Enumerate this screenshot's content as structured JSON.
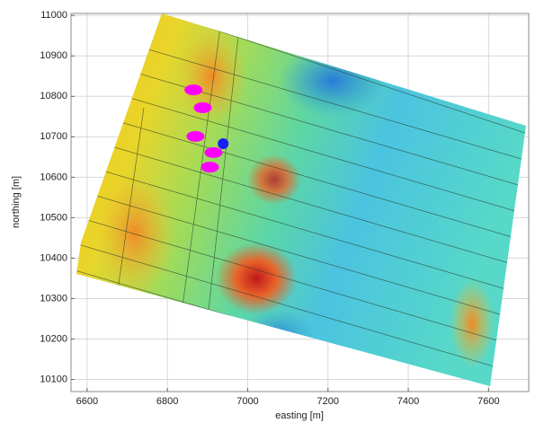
{
  "chart_data": {
    "type": "scatter",
    "xlabel": "easting [m]",
    "ylabel": "northing [m]",
    "xlim": [
      6560,
      7700
    ],
    "ylim": [
      10070,
      11005
    ],
    "xticks": [
      6600,
      6800,
      7000,
      7200,
      7400,
      7600
    ],
    "yticks": [
      10100,
      10200,
      10300,
      10400,
      10500,
      10600,
      10700,
      10800,
      10900,
      11000
    ],
    "grid": true,
    "series": [
      {
        "color": "#ff00ff",
        "x": [
          6865,
          6888,
          6870,
          6915,
          6906
        ],
        "y": [
          10816,
          10772,
          10701,
          10661,
          10625
        ]
      },
      {
        "color": "#1a1aff",
        "x": [
          6939
        ],
        "y": [
          10683
        ]
      }
    ]
  }
}
